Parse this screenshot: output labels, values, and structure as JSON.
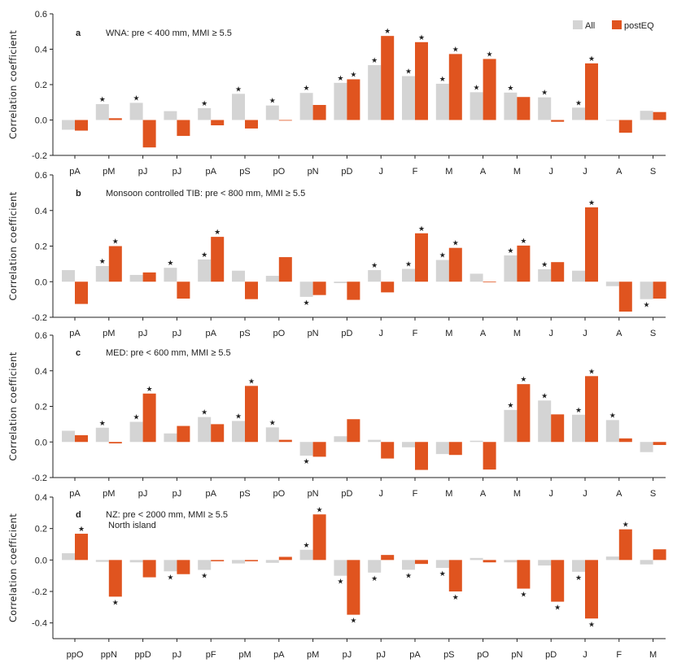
{
  "legend": {
    "all_label": "All",
    "post_label": "postEQ"
  },
  "colors": {
    "all": "#d4d4d4",
    "post": "#e0541f",
    "star_all": "#c4c4c4",
    "star_post": "#c0502a"
  },
  "chart_data": [
    {
      "type": "bar",
      "letter": "a",
      "title": "WNA: pre < 400 mm, MMI ≥ 5.5",
      "subtitle": "",
      "ylabel": "Correlation coefficient",
      "ylim": [
        -0.2,
        0.6
      ],
      "yticks": [
        "-0.2",
        "0.0",
        "0.2",
        "0.4",
        "0.6"
      ],
      "categories": [
        "pA",
        "pM",
        "pJ",
        "pJ",
        "pA",
        "pS",
        "pO",
        "pN",
        "pD",
        "J",
        "F",
        "M",
        "A",
        "M",
        "J",
        "J",
        "A",
        "S"
      ],
      "series": [
        {
          "name": "All",
          "values": [
            -0.055,
            0.09,
            0.097,
            0.05,
            0.067,
            0.148,
            0.082,
            0.153,
            0.21,
            0.31,
            0.248,
            0.205,
            0.157,
            0.155,
            0.128,
            0.07,
            0.0,
            0.052
          ],
          "significant": [
            false,
            true,
            true,
            false,
            true,
            true,
            true,
            true,
            true,
            true,
            true,
            true,
            true,
            true,
            true,
            true,
            false,
            false
          ]
        },
        {
          "name": "postEQ",
          "values": [
            -0.06,
            0.01,
            -0.155,
            -0.09,
            -0.03,
            -0.048,
            -0.003,
            0.085,
            0.23,
            0.475,
            0.44,
            0.373,
            0.345,
            0.13,
            -0.01,
            0.32,
            -0.072,
            0.045
          ],
          "significant": [
            false,
            false,
            false,
            false,
            false,
            false,
            false,
            false,
            true,
            true,
            true,
            true,
            true,
            false,
            false,
            true,
            false,
            false
          ]
        }
      ]
    },
    {
      "type": "bar",
      "letter": "b",
      "title": "Monsoon controlled TIB: pre < 800 mm, MMI ≥ 5.5",
      "subtitle": "",
      "ylabel": "Correlation coefficient",
      "ylim": [
        -0.2,
        0.6
      ],
      "yticks": [
        "-0.2",
        "0.0",
        "0.2",
        "0.4",
        "0.6"
      ],
      "categories": [
        "pA",
        "pM",
        "pJ",
        "pJ",
        "pA",
        "pS",
        "pO",
        "pN",
        "pD",
        "J",
        "F",
        "M",
        "A",
        "M",
        "J",
        "J",
        "A",
        "S"
      ],
      "series": [
        {
          "name": "All",
          "values": [
            0.065,
            0.088,
            0.038,
            0.078,
            0.125,
            0.062,
            0.033,
            -0.085,
            -0.008,
            0.065,
            0.072,
            0.122,
            0.045,
            0.148,
            0.07,
            0.062,
            -0.025,
            -0.098
          ],
          "significant": [
            false,
            true,
            false,
            true,
            true,
            false,
            false,
            true,
            false,
            true,
            true,
            true,
            false,
            true,
            true,
            false,
            false,
            true
          ]
        },
        {
          "name": "postEQ",
          "values": [
            -0.125,
            0.2,
            0.052,
            -0.095,
            0.252,
            -0.098,
            0.138,
            -0.075,
            -0.102,
            -0.06,
            0.272,
            0.19,
            0.0,
            0.203,
            0.11,
            0.418,
            -0.168,
            -0.095
          ],
          "significant": [
            false,
            true,
            false,
            false,
            true,
            false,
            false,
            false,
            false,
            false,
            true,
            true,
            false,
            true,
            false,
            true,
            false,
            false
          ]
        }
      ]
    },
    {
      "type": "bar",
      "letter": "c",
      "title": "MED: pre < 600 mm, MMI ≥ 5.5",
      "subtitle": "",
      "ylabel": "Correlation coefficient",
      "ylim": [
        -0.2,
        0.6
      ],
      "yticks": [
        "-0.2",
        "0.0",
        "0.2",
        "0.4",
        "0.6"
      ],
      "categories": [
        "pA",
        "pM",
        "pJ",
        "pJ",
        "pA",
        "pS",
        "pO",
        "pN",
        "pD",
        "J",
        "F",
        "M",
        "A",
        "M",
        "J",
        "J",
        "A",
        "S"
      ],
      "series": [
        {
          "name": "All",
          "values": [
            0.063,
            0.08,
            0.113,
            0.048,
            0.14,
            0.118,
            0.082,
            -0.077,
            0.032,
            0.012,
            -0.03,
            -0.068,
            0.007,
            0.18,
            0.233,
            0.153,
            0.123,
            -0.057
          ],
          "significant": [
            false,
            true,
            true,
            false,
            true,
            true,
            true,
            true,
            false,
            false,
            false,
            false,
            false,
            true,
            true,
            true,
            true,
            false
          ]
        },
        {
          "name": "postEQ",
          "values": [
            0.038,
            -0.008,
            0.272,
            0.09,
            0.1,
            0.315,
            0.012,
            -0.083,
            0.128,
            -0.093,
            -0.157,
            -0.073,
            -0.155,
            0.325,
            0.155,
            0.37,
            0.02,
            -0.017
          ],
          "significant": [
            false,
            false,
            true,
            false,
            false,
            true,
            false,
            false,
            false,
            false,
            false,
            false,
            false,
            true,
            false,
            true,
            false,
            false
          ]
        }
      ]
    },
    {
      "type": "bar",
      "letter": "d",
      "title": "NZ: pre < 2000 mm, MMI ≥ 5.5",
      "subtitle": "North island",
      "ylabel": "Correlation coefficient",
      "ylim": [
        -0.5,
        0.4
      ],
      "yticks": [
        "-0.4",
        "-0.2",
        "0.0",
        "0.2",
        "0.4"
      ],
      "categories": [
        "ppO",
        "ppN",
        "ppD",
        "pJ",
        "pF",
        "pM",
        "pA",
        "pM",
        "pJ",
        "pJ",
        "pA",
        "pS",
        "pO",
        "pN",
        "pD",
        "J",
        "F",
        "M"
      ],
      "series": [
        {
          "name": "All",
          "values": [
            0.043,
            -0.012,
            -0.015,
            -0.072,
            -0.063,
            -0.022,
            -0.018,
            0.065,
            -0.1,
            -0.08,
            -0.062,
            -0.05,
            0.013,
            -0.015,
            -0.035,
            -0.075,
            0.022,
            -0.028
          ],
          "significant": [
            false,
            false,
            false,
            true,
            true,
            false,
            false,
            true,
            true,
            true,
            true,
            true,
            false,
            false,
            false,
            true,
            false,
            false
          ]
        },
        {
          "name": "postEQ",
          "values": [
            0.167,
            -0.233,
            -0.11,
            -0.09,
            -0.008,
            -0.008,
            0.02,
            0.29,
            -0.348,
            0.032,
            -0.025,
            -0.2,
            -0.015,
            -0.182,
            -0.265,
            -0.372,
            0.195,
            0.068
          ],
          "significant": [
            true,
            true,
            false,
            false,
            false,
            false,
            false,
            true,
            true,
            false,
            false,
            true,
            false,
            true,
            true,
            true,
            true,
            false
          ]
        }
      ]
    }
  ]
}
